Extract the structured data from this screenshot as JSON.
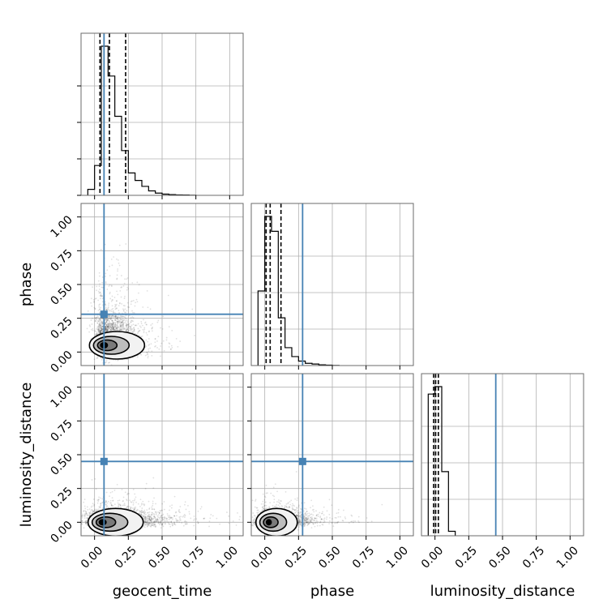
{
  "chart_data": {
    "type": "corner",
    "parameters": [
      "geocent_time",
      "phase",
      "luminosity_distance"
    ],
    "axis_range": [
      -0.1,
      1.1
    ],
    "ticks": [
      0.0,
      0.25,
      0.5,
      0.75,
      1.0
    ],
    "tick_labels": [
      "0.00",
      "0.25",
      "0.50",
      "0.75",
      "1.00"
    ],
    "truths": {
      "geocent_time": 0.07,
      "phase": 0.28,
      "luminosity_distance": 0.45
    },
    "truth_color": "#4682b4",
    "histograms": {
      "geocent_time": {
        "bin_edges": [
          -0.05,
          0.0,
          0.05,
          0.1,
          0.15,
          0.2,
          0.25,
          0.3,
          0.35,
          0.4,
          0.45,
          0.5,
          0.55,
          0.6,
          0.65,
          0.7,
          0.75
        ],
        "counts": [
          0.04,
          0.2,
          1.0,
          0.8,
          0.53,
          0.3,
          0.15,
          0.1,
          0.06,
          0.03,
          0.015,
          0.008,
          0.005,
          0.003,
          0.002,
          0.001
        ],
        "quantile_lines": [
          0.04,
          0.11,
          0.23
        ]
      },
      "phase": {
        "bin_edges": [
          -0.05,
          0.0,
          0.05,
          0.1,
          0.15,
          0.2,
          0.25,
          0.3,
          0.35,
          0.4,
          0.45,
          0.5,
          0.55
        ],
        "counts": [
          0.5,
          1.0,
          0.9,
          0.32,
          0.12,
          0.06,
          0.03,
          0.015,
          0.01,
          0.005,
          0.003,
          0.001
        ],
        "quantile_lines": [
          0.01,
          0.04,
          0.12
        ]
      },
      "luminosity_distance": {
        "bin_edges": [
          -0.05,
          0.0,
          0.05,
          0.1,
          0.15
        ],
        "counts": [
          0.95,
          1.0,
          0.43,
          0.03
        ],
        "quantile_lines": [
          -0.01,
          0.005,
          0.025
        ]
      }
    },
    "posterior_modes": [
      {
        "x": "geocent_time",
        "y": "phase",
        "center": [
          0.07,
          0.05
        ]
      },
      {
        "x": "geocent_time",
        "y": "luminosity_distance",
        "center": [
          0.06,
          0.0
        ]
      },
      {
        "x": "phase",
        "y": "luminosity_distance",
        "center": [
          0.03,
          0.0
        ]
      }
    ]
  }
}
